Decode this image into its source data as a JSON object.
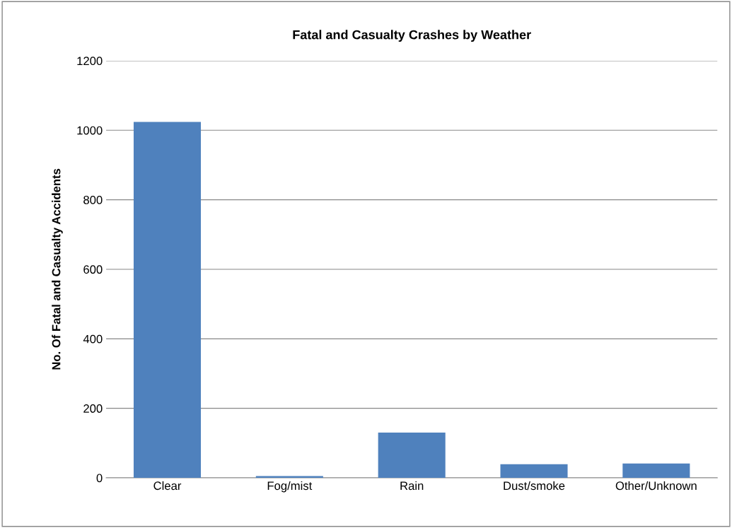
{
  "chart_data": {
    "type": "bar",
    "title": "Fatal and Casualty Crashes by Weather",
    "ylabel": "No. Of Fatal and Casualty Accidents",
    "categories": [
      "Clear",
      "Fog/mist",
      "Rain",
      "Dust/smoke",
      "Other/Unknown"
    ],
    "values": [
      1024,
      5,
      130,
      39,
      41
    ],
    "color": "#4f81bd",
    "ylim": [
      0,
      1200
    ],
    "yticks": [
      0,
      200,
      400,
      600,
      800,
      1000,
      1200
    ],
    "grid": "y",
    "legend": false
  }
}
